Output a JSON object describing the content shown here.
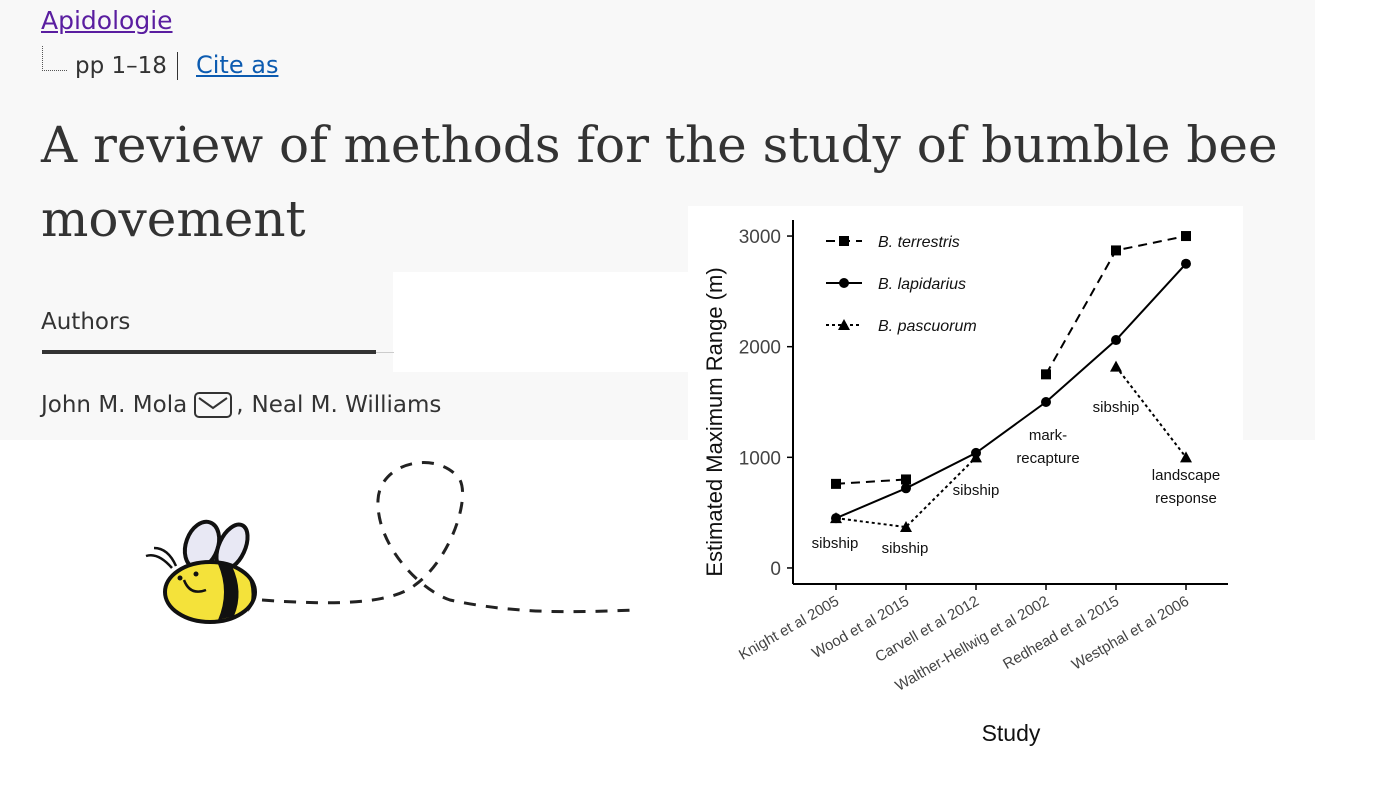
{
  "header": {
    "journal": "Apidologie",
    "pages": "pp 1–18",
    "cite": "Cite as",
    "title": "A review of methods for the study of bumble bee movement",
    "authors_heading": "Authors",
    "authors": [
      "John M. Mola",
      "Neal M. Williams"
    ],
    "author_separator": ","
  },
  "chart_data": {
    "type": "line",
    "categories": [
      "Knight et al 2005",
      "Wood et al 2015",
      "Carvell et al 2012",
      "Walther-Hellwig et al 2002",
      "Redhead et al 2015",
      "Westphal et al 2006"
    ],
    "series": [
      {
        "name": "B. terrestris",
        "color": "#000000",
        "line_style": "dashed",
        "marker": "square",
        "values": [
          760,
          800,
          null,
          1750,
          2870,
          3000
        ]
      },
      {
        "name": "B. lapidarius",
        "color": "#000000",
        "line_style": "solid",
        "marker": "circle",
        "values": [
          450,
          720,
          1040,
          1500,
          2060,
          2750
        ]
      },
      {
        "name": "B. pascuorum",
        "color": "#000000",
        "line_style": "dotted",
        "marker": "triangle",
        "values": [
          450,
          370,
          1000,
          null,
          1820,
          1000
        ]
      }
    ],
    "annotations": [
      "sibship",
      "sibship",
      "sibship",
      "mark-recapture",
      "sibship",
      "landscape response"
    ],
    "xlabel": "Study",
    "ylabel": "Estimated Maximum Range (m)",
    "ylim": [
      -145,
      3145
    ],
    "yticks": [
      0,
      1000,
      2000,
      3000
    ],
    "legend": "upper left"
  }
}
